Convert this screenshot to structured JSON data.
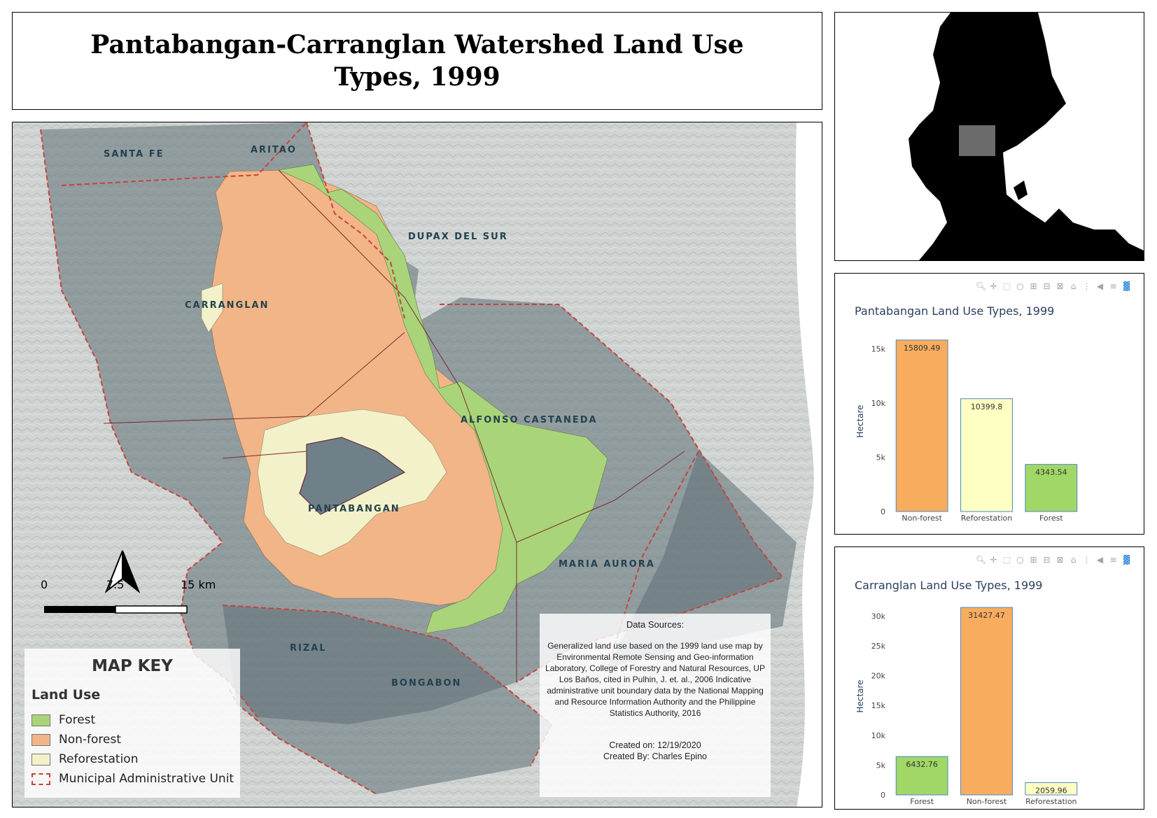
{
  "title": "Pantabangan-Carranglan Watershed Land Use Types, 1999",
  "colors": {
    "forest": "#a9d47a",
    "non_forest": "#f2b587",
    "reforestation": "#f3f1c9",
    "boundary": "#c8433b",
    "chart_forest": "#a1d766",
    "chart_non_forest": "#f8ad5e",
    "chart_reforestation": "#feffc2"
  },
  "map": {
    "municipalities": [
      {
        "id": "santa-fe",
        "label": "SANTA FE"
      },
      {
        "id": "aritao",
        "label": "ARITAO"
      },
      {
        "id": "dupax-del-sur",
        "label": "DUPAX DEL SUR"
      },
      {
        "id": "carranglan",
        "label": "CARRANGLAN"
      },
      {
        "id": "alfonso-castaneda",
        "label": "ALFONSO CASTANEDA"
      },
      {
        "id": "pantabangan",
        "label": "PANTABANGAN"
      },
      {
        "id": "maria-aurora",
        "label": "MARIA AURORA"
      },
      {
        "id": "rizal",
        "label": "RIZAL"
      },
      {
        "id": "bongabon",
        "label": "BONGABON"
      }
    ],
    "scale": {
      "labels": [
        "0",
        "7.5",
        "15 km"
      ]
    },
    "legend": {
      "title": "MAP KEY",
      "subtitle": "Land Use",
      "items": [
        {
          "label": "Forest",
          "color": "#a9d47a"
        },
        {
          "label": "Non-forest",
          "color": "#f2b587"
        },
        {
          "label": "Reforestation",
          "color": "#f3f1c9"
        },
        {
          "label": "Municipal Administrative Unit",
          "color": "#c8433b"
        }
      ]
    },
    "sources": {
      "heading": "Data Sources:",
      "body": "Generalized land use based on the 1999 land use map by Environmental Remote Sensing and Geo-information Laboratory, College of Forestry and Natural Resources, UP Los Baños, cited in Pulhin, J. et. al., 2006 Indicative administrative unit boundary data by the National Mapping and Resource Information Authority and the Philippine Statistics Authority, 2016",
      "created_on": "Created on: 12/19/2020",
      "created_by": "Created By: Charles Epino"
    }
  },
  "toolbar_icons": [
    "zoom-icon",
    "pan-icon",
    "box-select-icon",
    "lasso-select-icon",
    "zoom-in-icon",
    "zoom-out-icon",
    "autoscale-icon",
    "reset-axes-icon",
    "spike-lines-icon",
    "hover-closest-icon",
    "hover-compare-icon",
    "plotly-logo-icon"
  ],
  "chart_data": [
    {
      "type": "bar",
      "title": "Pantabangan Land Use Types, 1999",
      "xlabel": "",
      "ylabel": "Hectare",
      "categories": [
        "Non-forest",
        "Reforestation",
        "Forest"
      ],
      "values": [
        15809.49,
        10399.8,
        4343.54
      ],
      "value_labels": [
        "15809.49",
        "10399.8",
        "4343.54"
      ],
      "colors": [
        "#f8ad5e",
        "#feffc2",
        "#a1d766"
      ],
      "ylim": [
        0,
        16642
      ],
      "yticks": [
        0,
        5000,
        10000,
        15000
      ],
      "ytick_labels": [
        "0",
        "5k",
        "10k",
        "15k"
      ]
    },
    {
      "type": "bar",
      "title": "Carranglan Land Use Types, 1999",
      "xlabel": "",
      "ylabel": "Hectare",
      "categories": [
        "Forest",
        "Non-forest",
        "Reforestation"
      ],
      "values": [
        6432.76,
        31427.47,
        2059.96
      ],
      "value_labels": [
        "6432.76",
        "31427.47",
        "2059.96"
      ],
      "colors": [
        "#a1d766",
        "#f8ad5e",
        "#feffc2"
      ],
      "ylim": [
        0,
        33080
      ],
      "yticks": [
        0,
        5000,
        10000,
        15000,
        20000,
        25000,
        30000
      ],
      "ytick_labels": [
        "0",
        "5k",
        "10k",
        "15k",
        "20k",
        "25k",
        "30k"
      ]
    }
  ]
}
